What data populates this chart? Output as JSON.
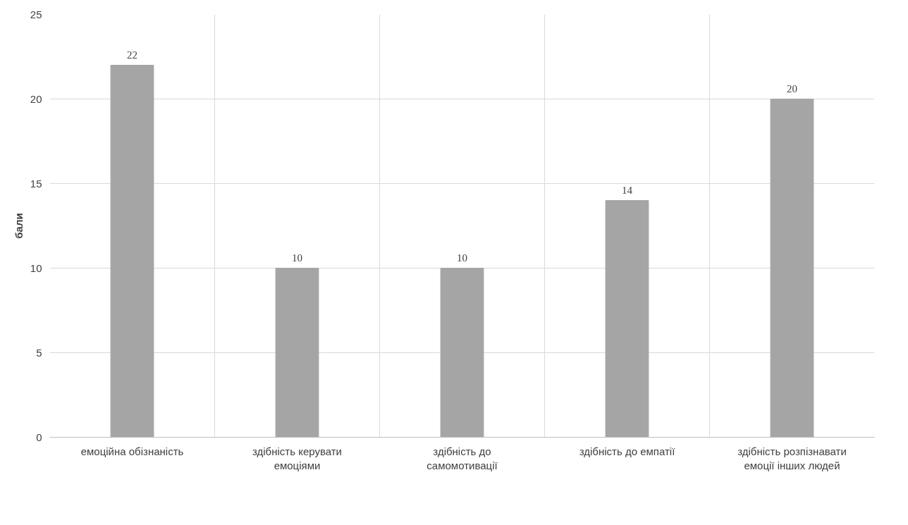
{
  "chart_data": {
    "type": "bar",
    "ylabel": "бали",
    "categories": [
      "емоційна обізнаність",
      "здібність керувати емоціями",
      "здібність до самомотивації",
      "здібність до емпатії",
      "здібність розпізнавати емоції інших людей"
    ],
    "values": [
      22,
      10,
      10,
      14,
      20
    ],
    "color": "#a5a5a5",
    "ylim": [
      0,
      25
    ],
    "yticks": [
      0,
      5,
      10,
      15,
      20,
      25
    ],
    "grid": true,
    "data_labels": true
  }
}
